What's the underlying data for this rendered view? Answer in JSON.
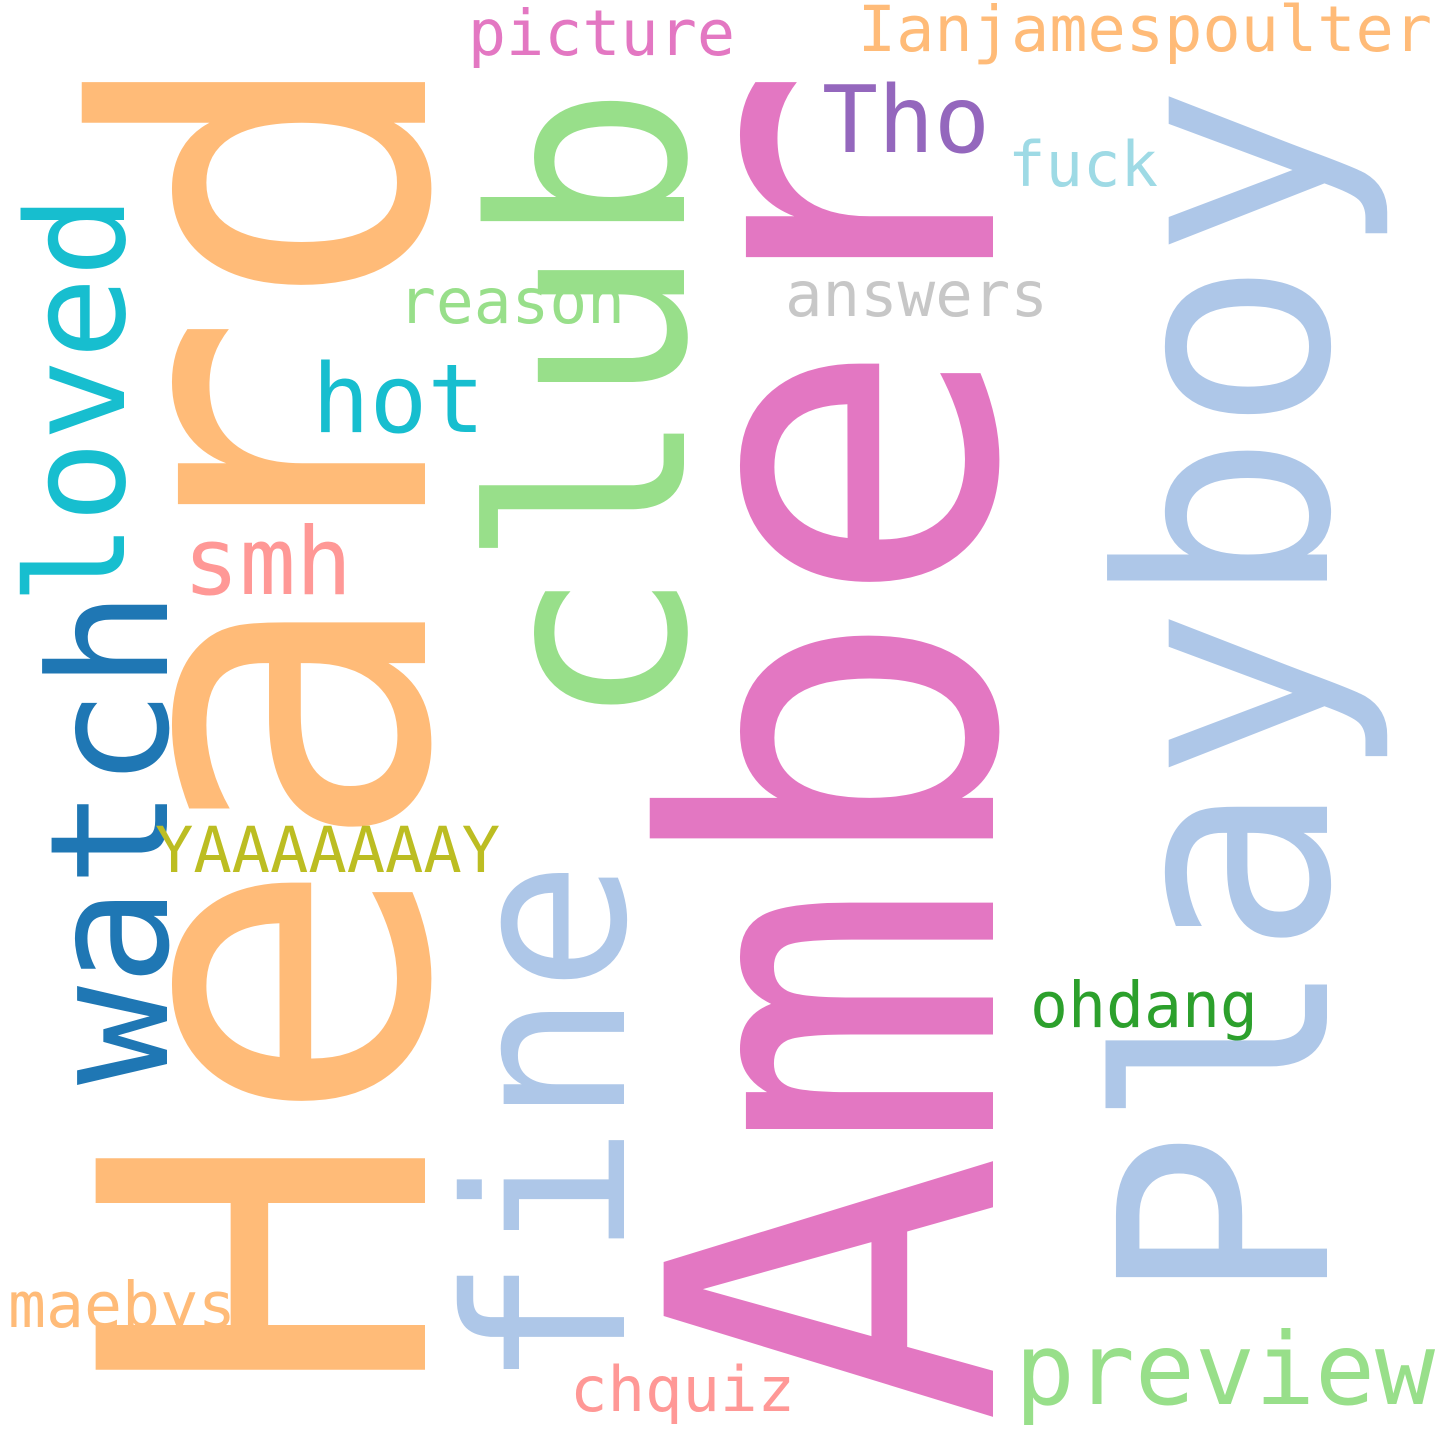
{
  "words": [
    {
      "id": "amber",
      "text": "Amber",
      "color": "#e377c2",
      "orientation": "vertical"
    },
    {
      "id": "heard",
      "text": "Heard",
      "color": "#ffbb78",
      "orientation": "vertical"
    },
    {
      "id": "playboy",
      "text": "Playboy",
      "color": "#aec7e8",
      "orientation": "vertical"
    },
    {
      "id": "club",
      "text": "club",
      "color": "#98df8a",
      "orientation": "vertical"
    },
    {
      "id": "fine",
      "text": "fine",
      "color": "#aec7e8",
      "orientation": "vertical"
    },
    {
      "id": "watch",
      "text": "watch",
      "color": "#1f77b4",
      "orientation": "vertical"
    },
    {
      "id": "loved",
      "text": "loved",
      "color": "#17becf",
      "orientation": "vertical"
    },
    {
      "id": "tho",
      "text": "Tho",
      "color": "#9467bd",
      "orientation": "horizontal"
    },
    {
      "id": "preview",
      "text": "preview",
      "color": "#98df8a",
      "orientation": "horizontal"
    },
    {
      "id": "hot",
      "text": "hot",
      "color": "#17becf",
      "orientation": "horizontal"
    },
    {
      "id": "smh",
      "text": "smh",
      "color": "#ff9896",
      "orientation": "horizontal"
    },
    {
      "id": "ianjamespoulter",
      "text": "Ianjamespoulter",
      "color": "#ffbb78",
      "orientation": "horizontal"
    },
    {
      "id": "picture",
      "text": "picture",
      "color": "#e377c2",
      "orientation": "horizontal"
    },
    {
      "id": "answers",
      "text": "answers",
      "color": "#c7c7c7",
      "orientation": "horizontal"
    },
    {
      "id": "fuck",
      "text": "fuck",
      "color": "#9edae5",
      "orientation": "horizontal"
    },
    {
      "id": "reason",
      "text": "reason",
      "color": "#98df8a",
      "orientation": "horizontal"
    },
    {
      "id": "yaaay",
      "text": "YAAAAAAAY",
      "color": "#bcbd22",
      "orientation": "horizontal"
    },
    {
      "id": "ohdang",
      "text": "ohdang",
      "color": "#2ca02c",
      "orientation": "horizontal"
    },
    {
      "id": "maebys",
      "text": "maebys",
      "color": "#ffbb78",
      "orientation": "horizontal"
    },
    {
      "id": "chquiz",
      "text": "chquiz",
      "color": "#ff9896",
      "orientation": "horizontal"
    }
  ]
}
